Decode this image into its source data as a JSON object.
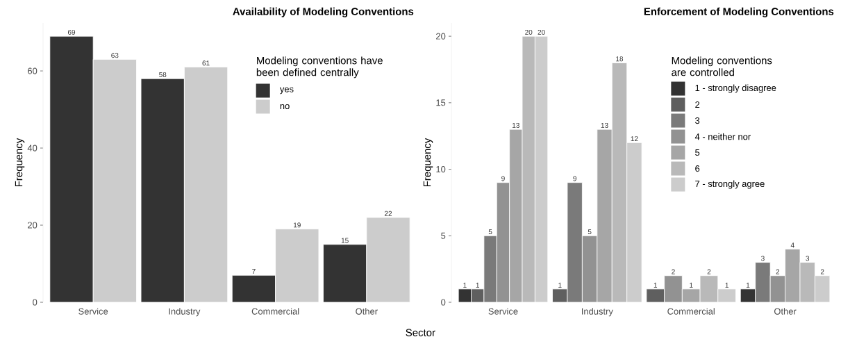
{
  "chart_data": [
    {
      "type": "bar",
      "title": "Availability of Modeling Conventions",
      "xlabel": "Sector",
      "ylabel": "Frequency",
      "categories": [
        "Service",
        "Industry",
        "Commercial",
        "Other"
      ],
      "series": [
        {
          "name": "yes",
          "color": "#333333",
          "values": [
            69,
            58,
            7,
            15
          ]
        },
        {
          "name": "no",
          "color": "#cccccc",
          "values": [
            63,
            61,
            19,
            22
          ]
        }
      ],
      "ylim": [
        0,
        72.45
      ],
      "yticks": [
        0,
        20,
        40,
        60
      ],
      "data_labels": true,
      "legend": "top right",
      "legend_title": "Modeling conventions have been defined centrally",
      "grid": false
    },
    {
      "type": "bar",
      "title": "Enforcement of Modeling Conventions",
      "ylabel": "Frequency",
      "categories": [
        "Service",
        "Industry",
        "Commercial",
        "Other"
      ],
      "series": [
        {
          "name": "1 - strongly disagree",
          "color": "#333333",
          "values": [
            1,
            null,
            null,
            1
          ]
        },
        {
          "name": "2",
          "color": "#5f5f5f",
          "values": [
            1,
            1,
            1,
            null
          ]
        },
        {
          "name": "3",
          "color": "#7a7a7a",
          "values": [
            5,
            9,
            null,
            3
          ]
        },
        {
          "name": "4 - neither nor",
          "color": "#929292",
          "values": [
            9,
            5,
            2,
            2
          ]
        },
        {
          "name": "5",
          "color": "#a6a6a6",
          "values": [
            13,
            13,
            1,
            4
          ]
        },
        {
          "name": "6",
          "color": "#b9b9b9",
          "values": [
            20,
            18,
            2,
            3
          ]
        },
        {
          "name": "7 - strongly agree",
          "color": "#cccccc",
          "values": [
            20,
            12,
            1,
            2
          ]
        }
      ],
      "ylim": [
        0,
        21
      ],
      "yticks": [
        0,
        5,
        10,
        15,
        20
      ],
      "data_labels": true,
      "legend": "top right",
      "legend_title": "Modeling conventions are controlled",
      "grid": false
    }
  ]
}
